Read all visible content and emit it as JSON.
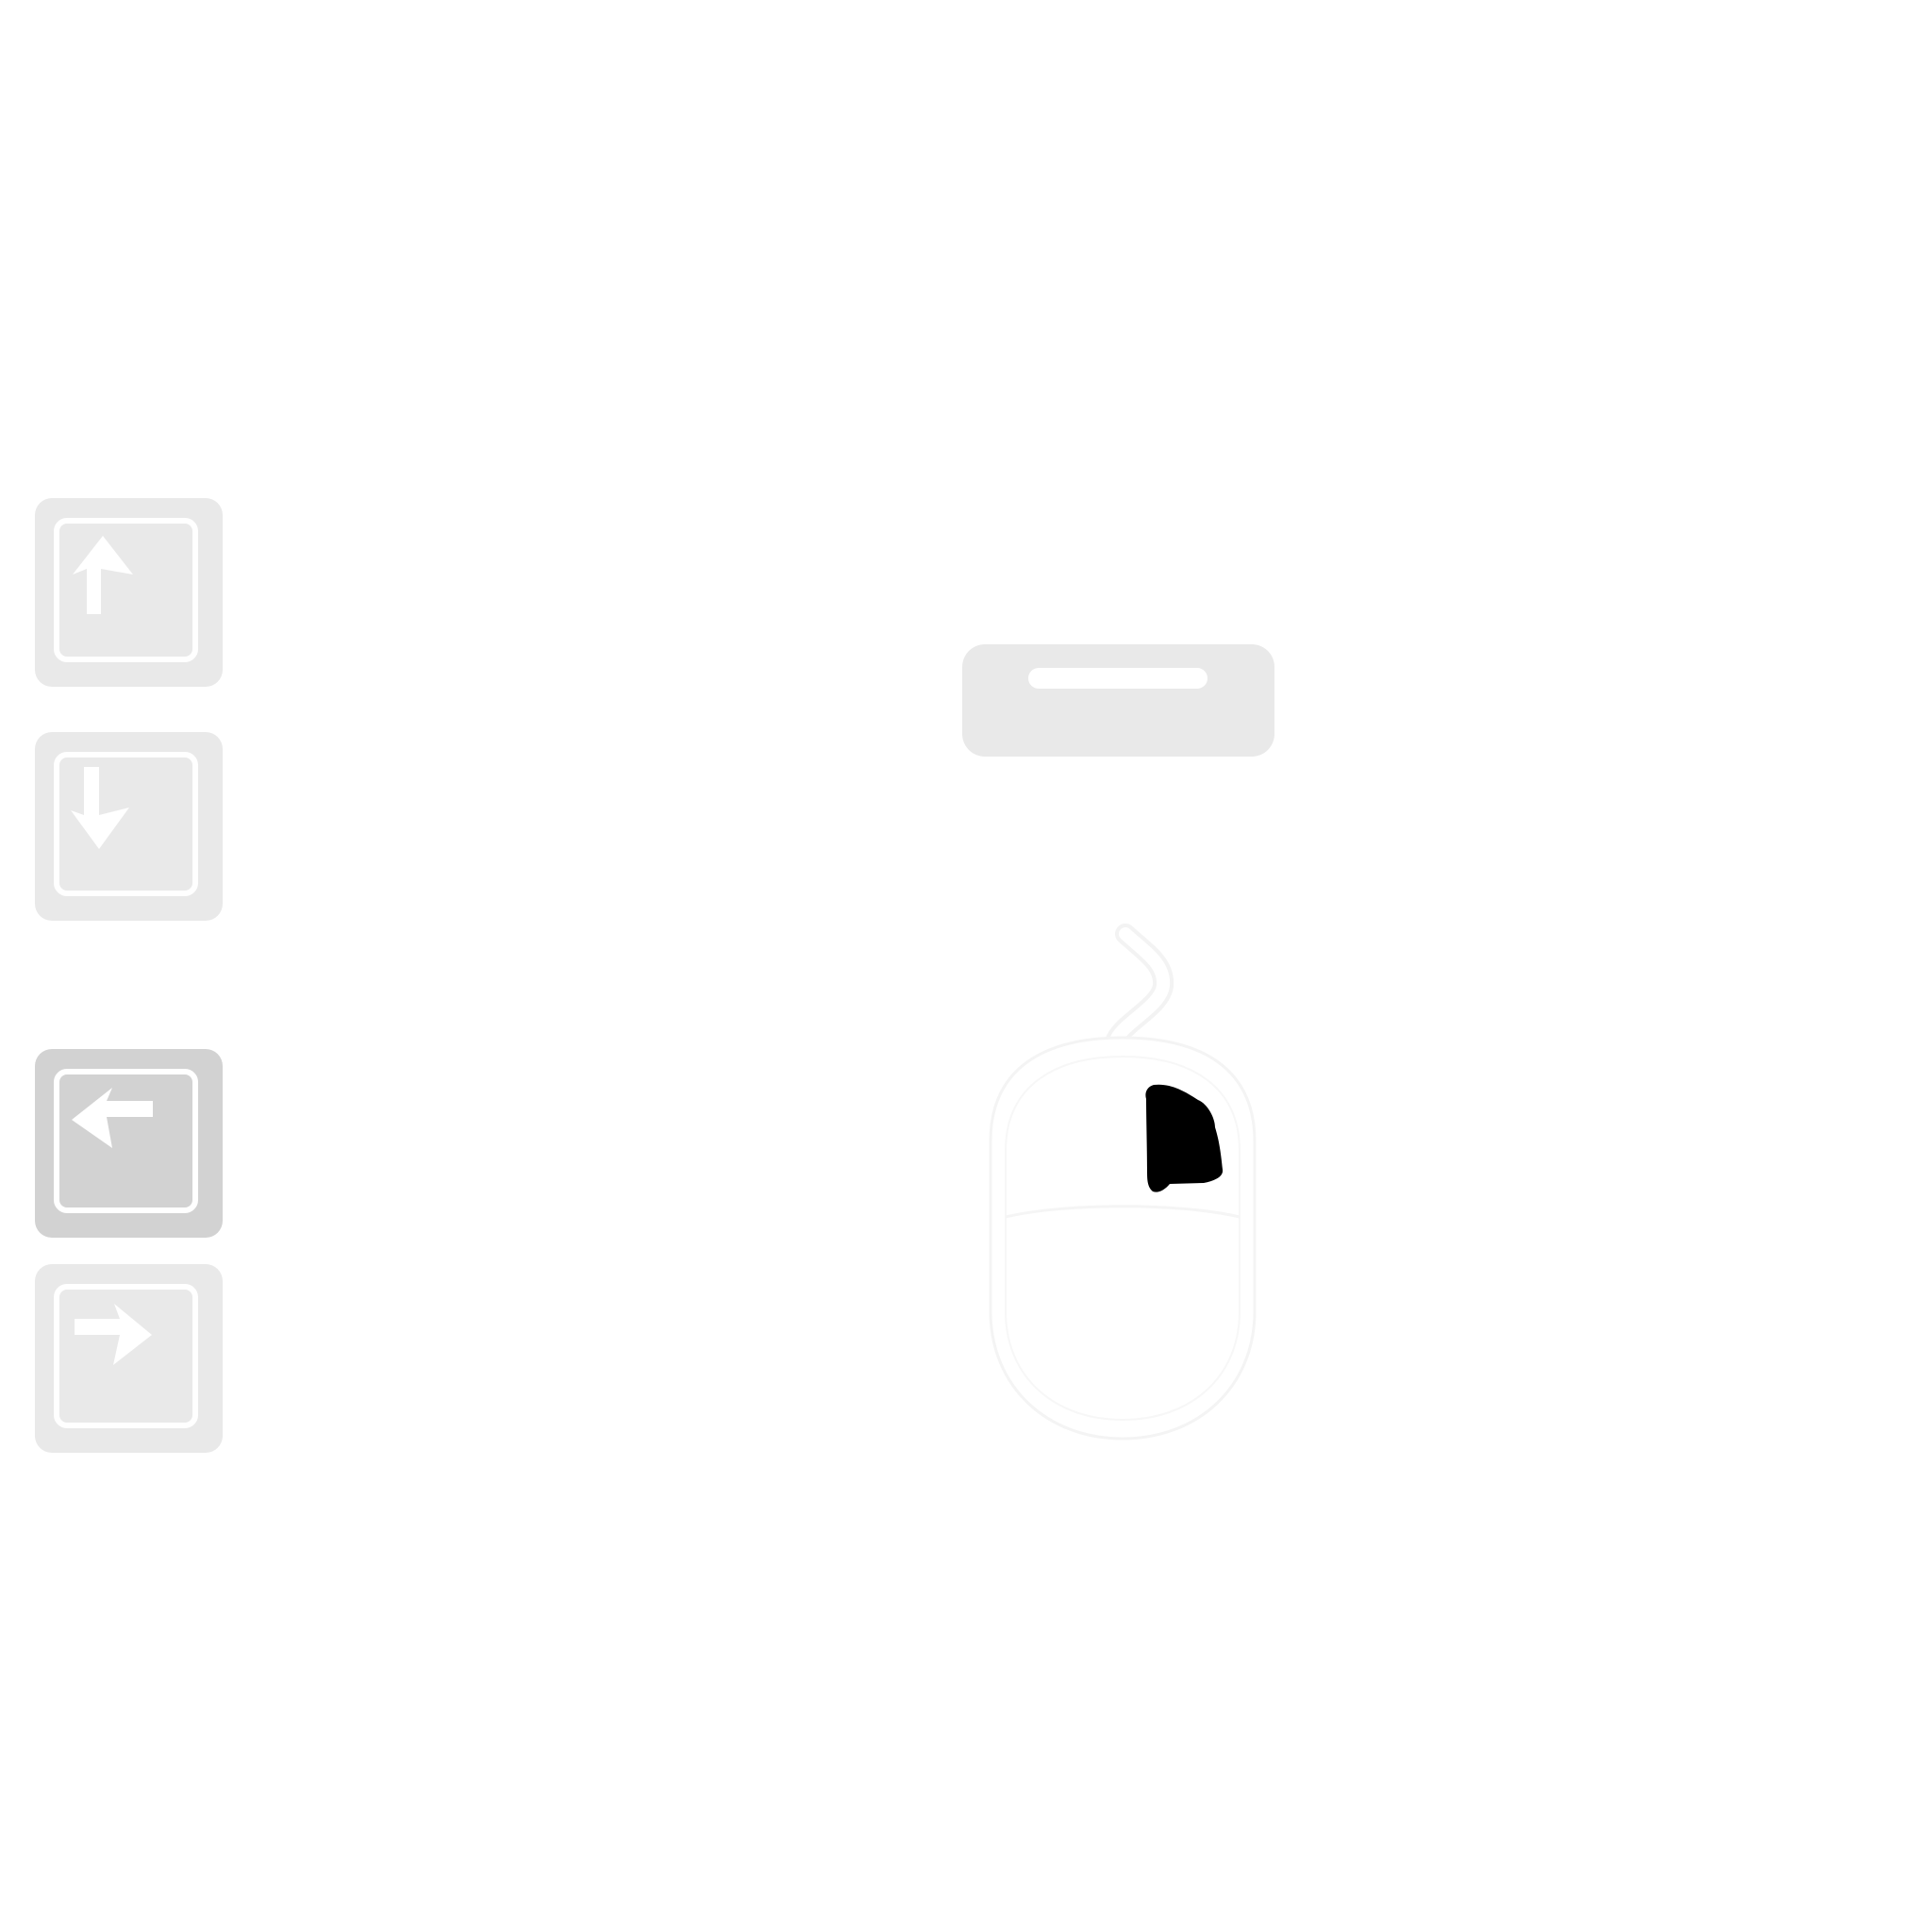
{
  "keys": [
    {
      "id": "up",
      "icon": "arrow-up-icon",
      "pressed": false
    },
    {
      "id": "down",
      "icon": "arrow-down-icon",
      "pressed": false
    },
    {
      "id": "left",
      "icon": "arrow-left-icon",
      "pressed": true
    },
    {
      "id": "right",
      "icon": "arrow-right-icon",
      "pressed": false
    }
  ],
  "space_bar": {
    "icon": "space-bar-icon",
    "pressed": false
  },
  "mouse": {
    "icon": "mouse-icon",
    "active_button": "right"
  },
  "colors": {
    "background": "#ffffff",
    "key_idle": "#e9e9e9",
    "key_pressed": "#d2d2d2",
    "glyph": "#ffffff",
    "mouse_highlight": "#000000"
  }
}
